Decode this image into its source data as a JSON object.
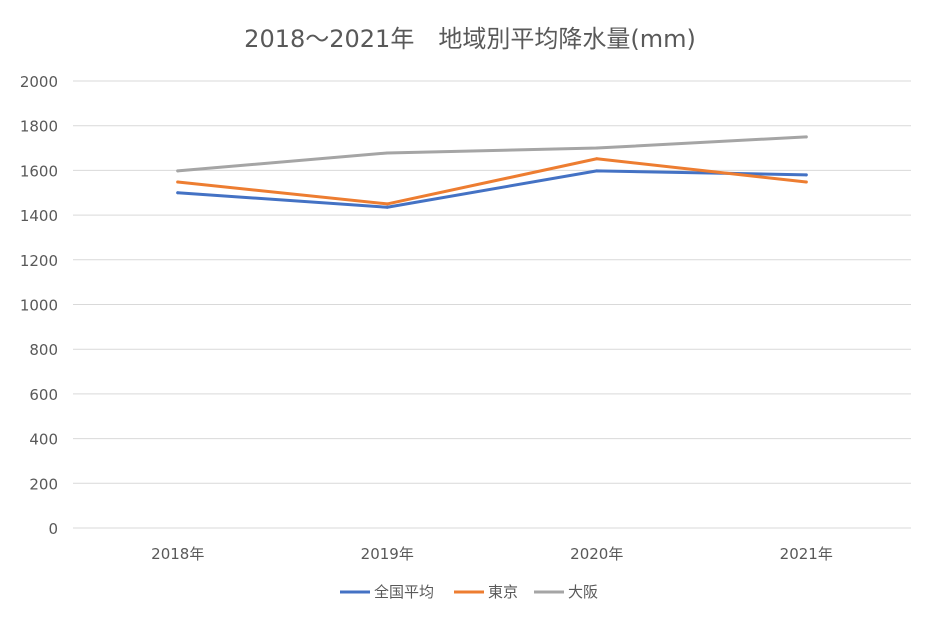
{
  "chart_data": {
    "type": "line",
    "title": "2018～2021年　地域別平均降水量(mm)",
    "xlabel": "",
    "ylabel": "",
    "categories": [
      "2018年",
      "2019年",
      "2020年",
      "2021年"
    ],
    "ylim": [
      0,
      2000
    ],
    "yticks": [
      "0",
      "200",
      "400",
      "600",
      "800",
      "1000",
      "1200",
      "1400",
      "1600",
      "1800",
      "2000"
    ],
    "grid": true,
    "legend_position": "bottom",
    "series": [
      {
        "name": "全国平均",
        "color": "#4472C4",
        "values": [
          1500,
          1435,
          1598,
          1580
        ]
      },
      {
        "name": "東京",
        "color": "#ED7D31",
        "values": [
          1548,
          1450,
          1652,
          1548
        ]
      },
      {
        "name": "大阪",
        "color": "#A5A5A5",
        "values": [
          1598,
          1678,
          1700,
          1750
        ]
      }
    ]
  }
}
